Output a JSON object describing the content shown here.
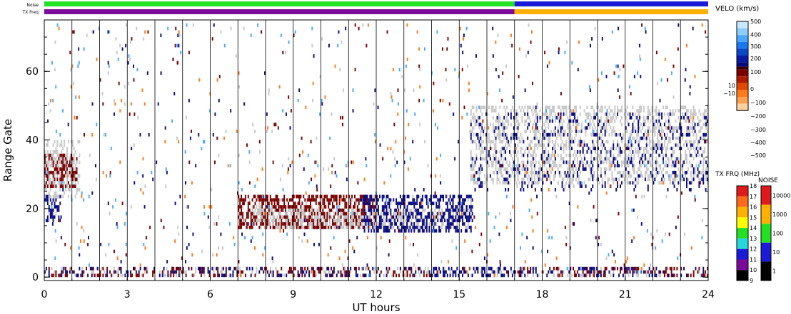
{
  "chart_data": {
    "type": "heatmap",
    "xlabel": "UT hours",
    "ylabel": "Range Gate",
    "xlim": [
      0,
      24
    ],
    "ylim": [
      -1,
      75
    ],
    "x_ticks": [
      "0",
      "3",
      "6",
      "9",
      "12",
      "15",
      "18",
      "21",
      "24"
    ],
    "y_ticks": [
      "0",
      "20",
      "40",
      "60"
    ],
    "hour_gridlines": true,
    "top_bars": {
      "noise_label": "Noise",
      "txfreq_label": "TX Freq",
      "noise_segments": [
        {
          "from": 0,
          "to": 17,
          "color": "#22e022"
        },
        {
          "from": 17,
          "to": 24,
          "color": "#1a1ad8"
        }
      ],
      "txfreq_segments": [
        {
          "from": 0,
          "to": 17,
          "color": "#7a0a9a"
        },
        {
          "from": 17,
          "to": 24,
          "color": "#ffb000"
        }
      ]
    },
    "velocity_colorbar": {
      "title": "VELO (km/s)",
      "ticks": [
        "500",
        "400",
        "300",
        "200",
        "100",
        "10",
        "0",
        "−10",
        "−100",
        "−200",
        "−300",
        "−400",
        "−500"
      ]
    },
    "txfreq_colorbar": {
      "title": "TX FRQ (MHz)",
      "ticks": [
        "18",
        "17",
        "16",
        "15",
        "14",
        "13",
        "12",
        "11",
        "10",
        "9"
      ]
    },
    "noise_colorbar": {
      "title": "NOISE",
      "ticks": [
        "10000",
        "1000",
        "100",
        "10",
        "1"
      ]
    },
    "colors": {
      "ground_scatter": "#c8c8c8",
      "neg_velocity_dark": "#7a0000",
      "pos_velocity_dark": "#0a0a80",
      "orange": "#ff7a1a",
      "light_blue": "#4aa8ff"
    },
    "regions": [
      {
        "name": "near-range ground scatter",
        "t": [
          0,
          24
        ],
        "g": [
          0,
          3
        ],
        "type": "mixed-near"
      },
      {
        "name": "early dark red patch",
        "t": [
          0,
          1.2
        ],
        "g": [
          26,
          36
        ],
        "type": "red"
      },
      {
        "name": "early blue patch",
        "t": [
          0,
          0.6
        ],
        "g": [
          16,
          24
        ],
        "type": "blue"
      },
      {
        "name": "early ground scatter",
        "t": [
          0,
          1.3
        ],
        "g": [
          23,
          40
        ],
        "type": "grey"
      },
      {
        "name": "mid-day dark red band",
        "t": [
          7.0,
          12.0
        ],
        "g": [
          14,
          24
        ],
        "type": "red"
      },
      {
        "name": "mid-day ground scatter",
        "t": [
          7.5,
          15.5
        ],
        "g": [
          14,
          20
        ],
        "type": "grey"
      },
      {
        "name": "mid-day blue band",
        "t": [
          11.5,
          15.5
        ],
        "g": [
          13,
          24
        ],
        "type": "blue"
      },
      {
        "name": "evening ground scatter",
        "t": [
          15.4,
          24
        ],
        "g": [
          27,
          50
        ],
        "type": "grey"
      },
      {
        "name": "evening blue scatter",
        "t": [
          15.4,
          24
        ],
        "g": [
          25,
          48
        ],
        "type": "blue-sparse"
      }
    ]
  }
}
